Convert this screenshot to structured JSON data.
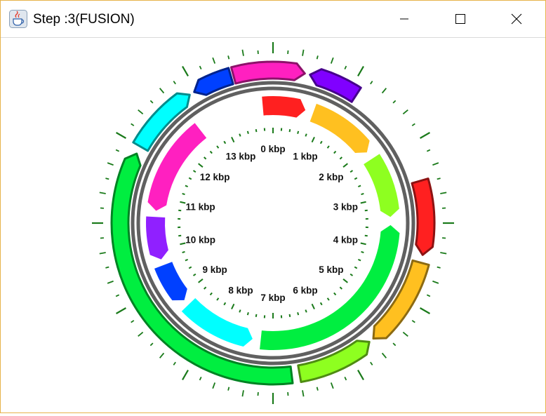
{
  "window": {
    "title": "Step :3(FUSION)",
    "border_color": "#e6b24a",
    "controls": [
      "minimize-icon",
      "maximize-icon",
      "close-icon"
    ]
  },
  "plasmid_map": {
    "scale_unit": "kbp",
    "scale_labels": [
      "0 kbp",
      "1 kbp",
      "2 kbp",
      "3 kbp",
      "4 kbp",
      "5 kbp",
      "6 kbp",
      "7 kbp",
      "8 kbp",
      "9 kbp",
      "10 kbp",
      "11 kbp",
      "12 kbp",
      "13 kbp"
    ],
    "backbone_color": "#606060",
    "tick_color": "#1a7a1a",
    "inner_track": [
      {
        "color": "#ff2020",
        "start_deg": 355,
        "end_deg": 16,
        "arrow": "end"
      },
      {
        "color": "#ffc020",
        "start_deg": 20,
        "end_deg": 53,
        "arrow": "end"
      },
      {
        "color": "#8eff20",
        "start_deg": 57,
        "end_deg": 87,
        "arrow": "end"
      },
      {
        "color": "#00ee40",
        "start_deg": 91,
        "end_deg": 186,
        "arrow": "start"
      },
      {
        "color": "#00ffff",
        "start_deg": 190,
        "end_deg": 226,
        "arrow": "start"
      },
      {
        "color": "#0040ff",
        "start_deg": 229,
        "end_deg": 249,
        "arrow": "start"
      },
      {
        "color": "#9020ff",
        "start_deg": 252,
        "end_deg": 273,
        "arrow": "start"
      },
      {
        "color": "#ff20c0",
        "start_deg": 276,
        "end_deg": 322,
        "arrow": "start"
      }
    ],
    "outer_track": [
      {
        "color": "#ff2020",
        "start_deg": 74,
        "end_deg": 102,
        "arrow": "end"
      },
      {
        "color": "#ffc020",
        "start_deg": 105,
        "end_deg": 139,
        "arrow": "end"
      },
      {
        "color": "#8eff20",
        "start_deg": 141,
        "end_deg": 170,
        "arrow": "start"
      },
      {
        "color": "#00ee40",
        "start_deg": 173,
        "end_deg": 297,
        "arrow": "end"
      },
      {
        "color": "#00ffff",
        "start_deg": 300,
        "end_deg": 327,
        "arrow": "end"
      },
      {
        "color": "#0040ff",
        "start_deg": 329,
        "end_deg": 344,
        "arrow": "start"
      },
      {
        "color": "#ff20c0",
        "start_deg": 345,
        "end_deg": 12,
        "arrow": "end"
      },
      {
        "color": "#8000ff",
        "start_deg": 14,
        "end_deg": 33,
        "arrow": "start"
      }
    ]
  }
}
